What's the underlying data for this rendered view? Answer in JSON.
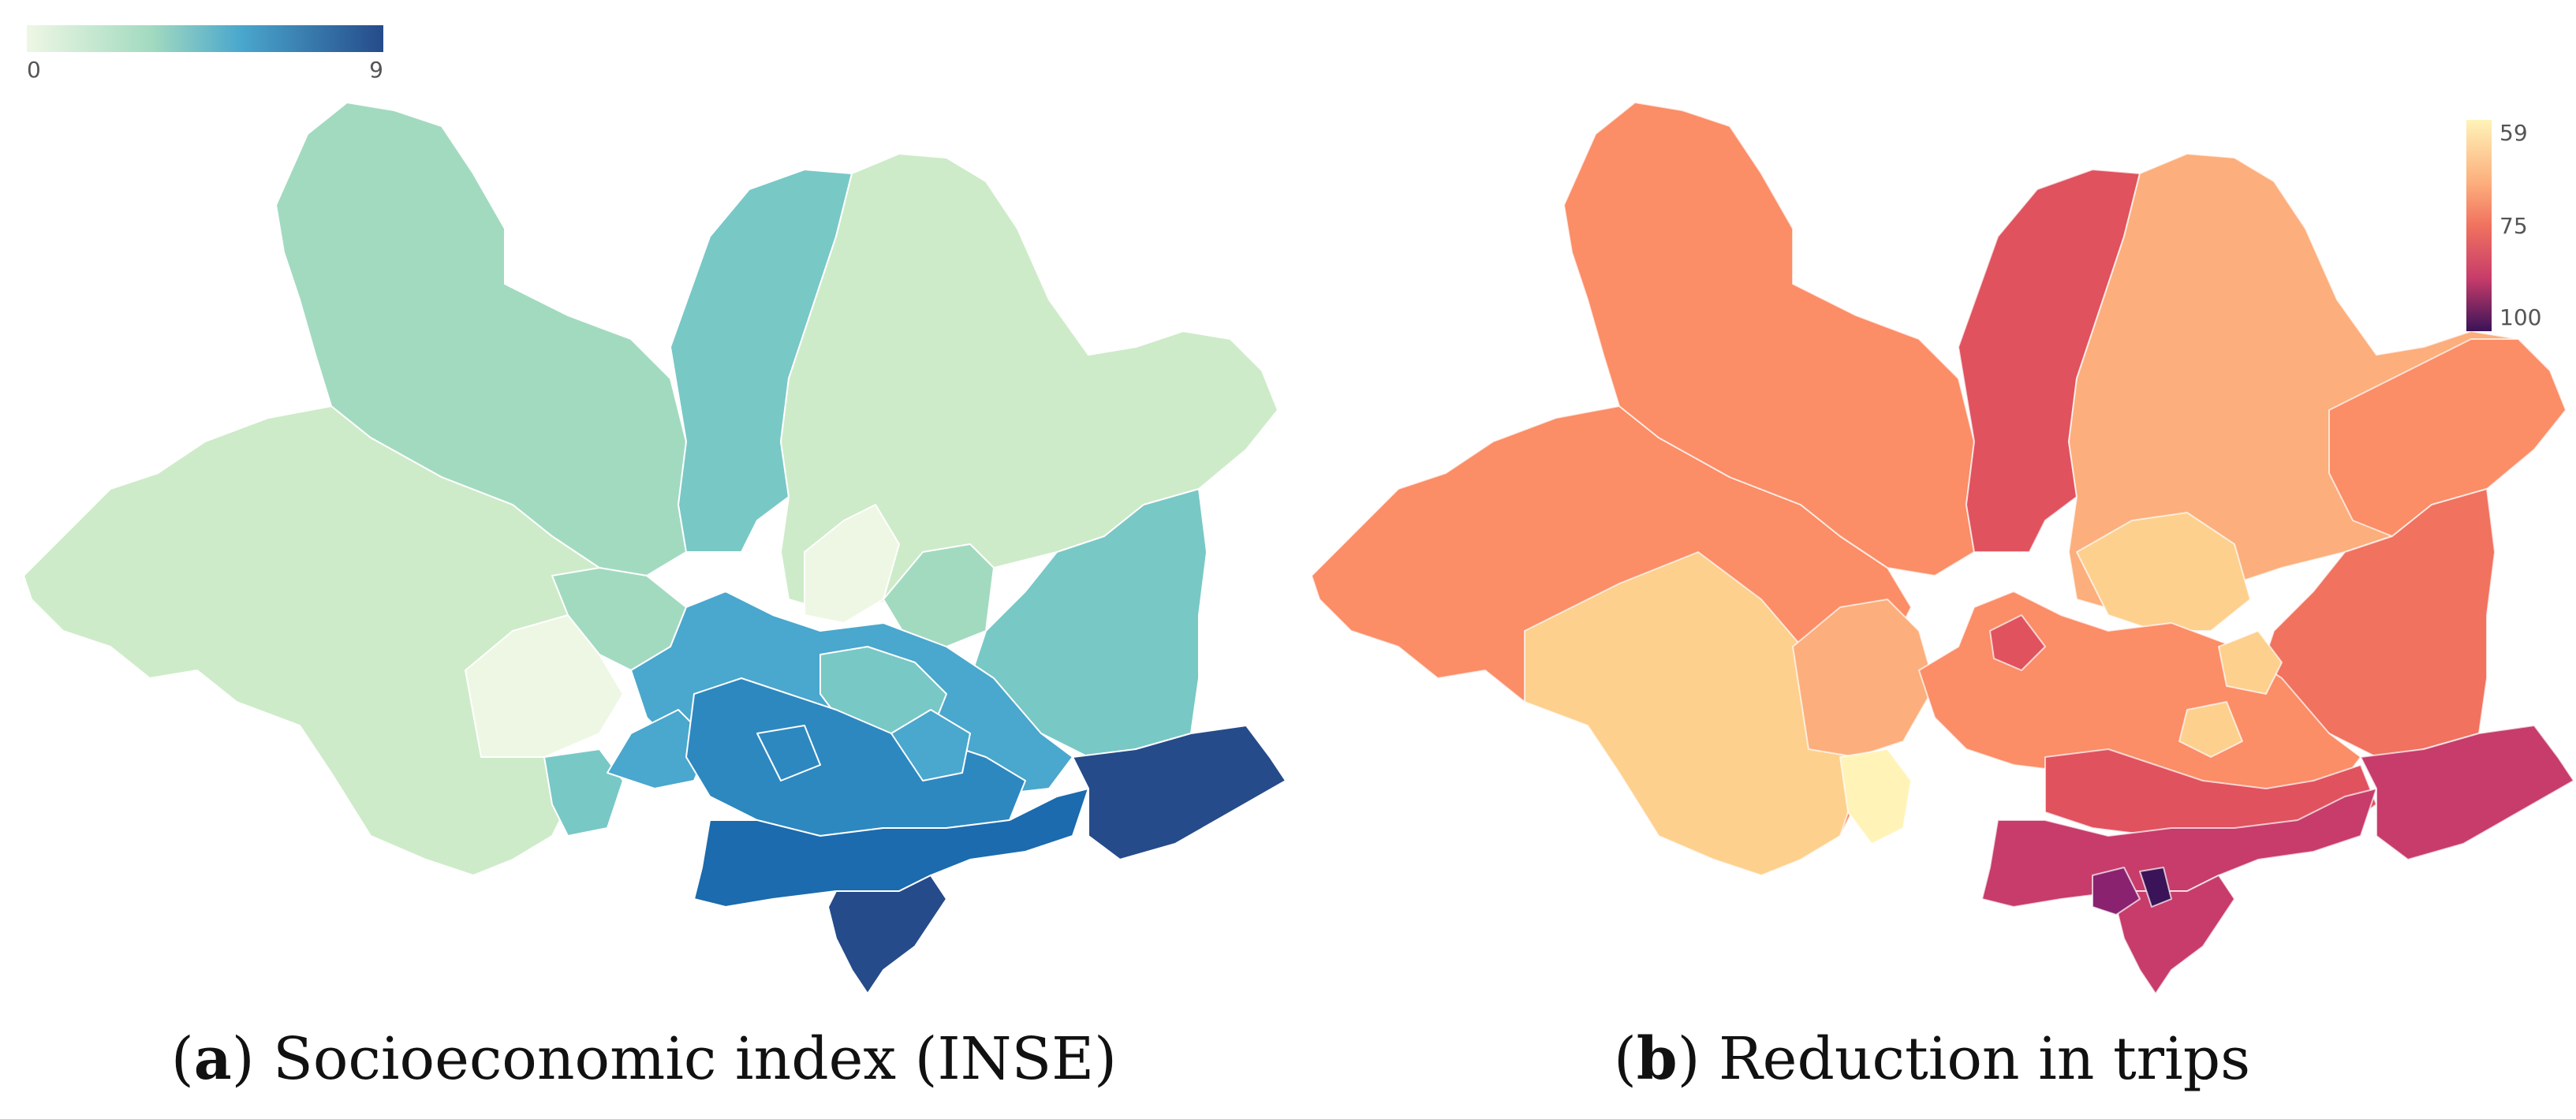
{
  "panels": {
    "a": {
      "letter": "a",
      "caption": "Socioeconomic index (INSE)",
      "legend": {
        "min_label": "0",
        "max_label": "9",
        "colors": [
          "#eef7e4",
          "#cdebc8",
          "#a2dac0",
          "#78c8c6",
          "#4aa7cd",
          "#2d88c0",
          "#1b6bae",
          "#254b8a"
        ]
      }
    },
    "b": {
      "letter": "b",
      "caption": "Reduction in trips",
      "legend": {
        "labels": [
          "59",
          "75",
          "100"
        ],
        "colors": [
          "#fff3b8",
          "#fdd08e",
          "#fcae7c",
          "#fb8d67",
          "#f0725f",
          "#e0525e",
          "#c73c6a",
          "#8a2270",
          "#3a1358"
        ]
      }
    }
  }
}
